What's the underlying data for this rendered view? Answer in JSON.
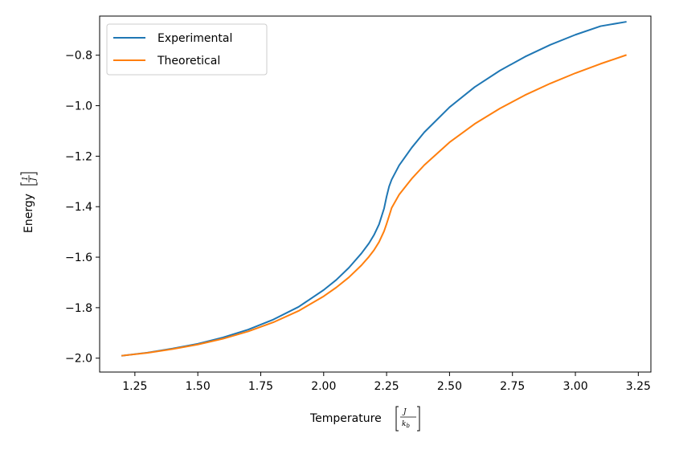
{
  "chart_data": {
    "type": "line",
    "xlabel": "Temperature",
    "xlabel_unit": {
      "numerator": "J",
      "denominator": "k_b",
      "denominator_base": "k",
      "denominator_sub": "b"
    },
    "ylabel": "Energy",
    "ylabel_unit": {
      "numerator": "1",
      "denominator": "J"
    },
    "xlim": [
      1.11,
      3.3
    ],
    "ylim": [
      -2.055,
      -0.645
    ],
    "xticks": [
      1.25,
      1.5,
      1.75,
      2.0,
      2.25,
      2.5,
      2.75,
      3.0,
      3.25
    ],
    "xtick_labels": [
      "1.25",
      "1.50",
      "1.75",
      "2.00",
      "2.25",
      "2.50",
      "2.75",
      "3.00",
      "3.25"
    ],
    "yticks": [
      -2.0,
      -1.8,
      -1.6,
      -1.4,
      -1.2,
      -1.0,
      -0.8
    ],
    "ytick_labels": [
      "−2.0",
      "−1.8",
      "−1.6",
      "−1.4",
      "−1.2",
      "−1.0",
      "−0.8"
    ],
    "legend": {
      "placement": "top-left"
    },
    "grid": false,
    "x": [
      1.2,
      1.3,
      1.4,
      1.5,
      1.6,
      1.7,
      1.8,
      1.9,
      2.0,
      2.05,
      2.1,
      2.15,
      2.18,
      2.2,
      2.22,
      2.24,
      2.25,
      2.26,
      2.27,
      2.3,
      2.35,
      2.4,
      2.5,
      2.6,
      2.7,
      2.8,
      2.9,
      3.0,
      3.1,
      3.2
    ],
    "series": [
      {
        "name": "Experimental",
        "color": "#1f77b4",
        "values": [
          -1.99,
          -1.978,
          -1.962,
          -1.943,
          -1.918,
          -1.887,
          -1.847,
          -1.797,
          -1.73,
          -1.69,
          -1.642,
          -1.585,
          -1.545,
          -1.512,
          -1.47,
          -1.407,
          -1.36,
          -1.32,
          -1.293,
          -1.236,
          -1.166,
          -1.105,
          -1.006,
          -0.926,
          -0.861,
          -0.806,
          -0.759,
          -0.719,
          -0.685,
          -0.668
        ]
      },
      {
        "name": "Theoretical",
        "color": "#ff7f0e",
        "values": [
          -1.99,
          -1.979,
          -1.964,
          -1.946,
          -1.923,
          -1.894,
          -1.858,
          -1.813,
          -1.755,
          -1.72,
          -1.68,
          -1.632,
          -1.598,
          -1.572,
          -1.54,
          -1.497,
          -1.468,
          -1.437,
          -1.405,
          -1.352,
          -1.289,
          -1.235,
          -1.145,
          -1.072,
          -1.011,
          -0.958,
          -0.912,
          -0.871,
          -0.834,
          -0.8
        ]
      }
    ]
  }
}
